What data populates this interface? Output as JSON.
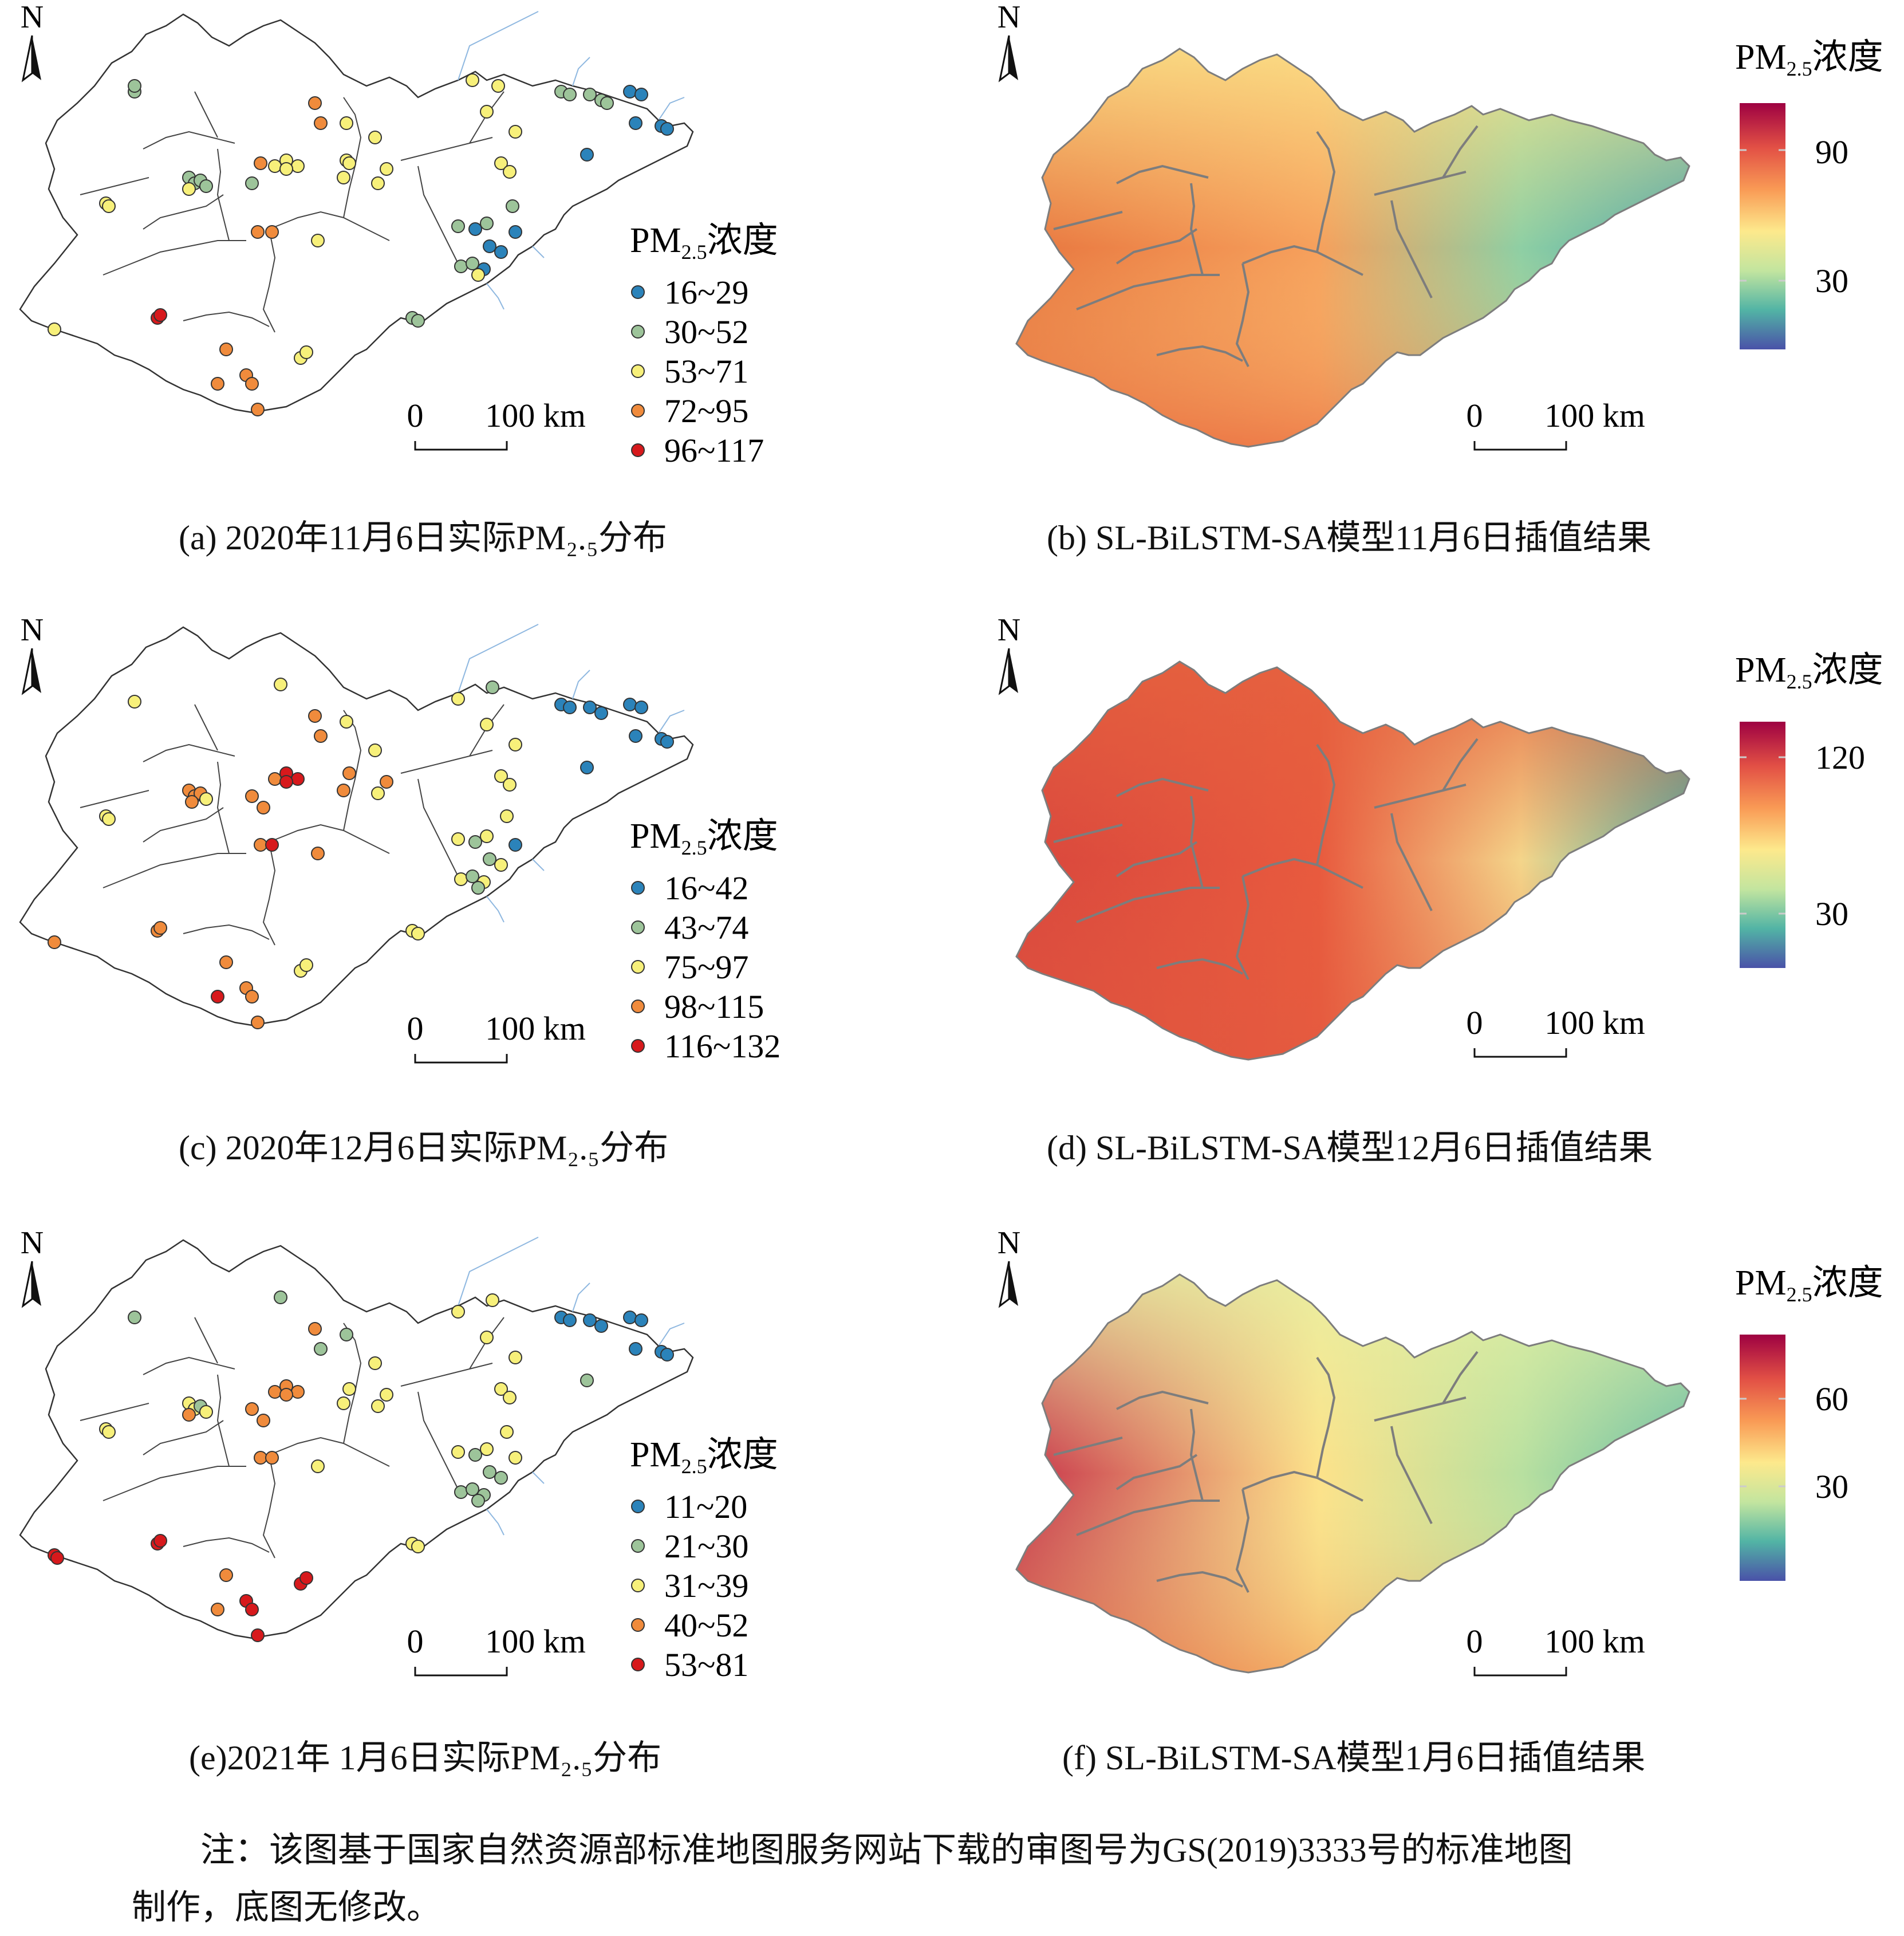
{
  "common": {
    "north_label": "N",
    "scale_zero": "0",
    "scale_label": "100 km",
    "legend_title_base": "PM",
    "legend_title_sub": "2.5",
    "legend_title_tail": "浓度"
  },
  "panels": [
    {
      "id": "a",
      "type": "points",
      "caption": "(a) 2020年11月6日实际PM₂.₅分布",
      "classes": [
        {
          "label": "16~29",
          "color": "#2b83ba"
        },
        {
          "label": "30~52",
          "color": "#9dc49a"
        },
        {
          "label": "53~71",
          "color": "#f7f07a"
        },
        {
          "label": "72~95",
          "color": "#f08b3c"
        },
        {
          "label": "96~117",
          "color": "#d7191c"
        }
      ]
    },
    {
      "id": "b",
      "type": "surface",
      "caption": "(b) SL-BiLSTM-SA模型11月6日插值结果",
      "colorbar_ticks": [
        "90",
        "30"
      ],
      "theme": "nov"
    },
    {
      "id": "c",
      "type": "points",
      "caption": "(c) 2020年12月6日实际PM₂.₅分布",
      "classes": [
        {
          "label": "16~42",
          "color": "#2b83ba"
        },
        {
          "label": "43~74",
          "color": "#9dc49a"
        },
        {
          "label": "75~97",
          "color": "#f7f07a"
        },
        {
          "label": "98~115",
          "color": "#f08b3c"
        },
        {
          "label": "116~132",
          "color": "#d7191c"
        }
      ]
    },
    {
      "id": "d",
      "type": "surface",
      "caption": "(d) SL-BiLSTM-SA模型12月6日插值结果",
      "colorbar_ticks": [
        "120",
        "30"
      ],
      "theme": "dec"
    },
    {
      "id": "e",
      "type": "points",
      "caption": "(e)2021年 1月6日实际PM₂.₅分布",
      "classes": [
        {
          "label": "11~20",
          "color": "#2b83ba"
        },
        {
          "label": "21~30",
          "color": "#9dc49a"
        },
        {
          "label": "31~39",
          "color": "#f7f07a"
        },
        {
          "label": "40~52",
          "color": "#f08b3c"
        },
        {
          "label": "53~81",
          "color": "#d7191c"
        }
      ]
    },
    {
      "id": "f",
      "type": "surface",
      "caption": "(f) SL-BiLSTM-SA模型1月6日插值结果",
      "colorbar_ticks": [
        "60",
        "30"
      ],
      "theme": "jan"
    }
  ],
  "note": {
    "line1": "注：该图基于国家自然资源部标准地图服务网站下载的审图号为GS(2019)3333号的标准地图",
    "line2": "制作，底图无修改。"
  }
}
